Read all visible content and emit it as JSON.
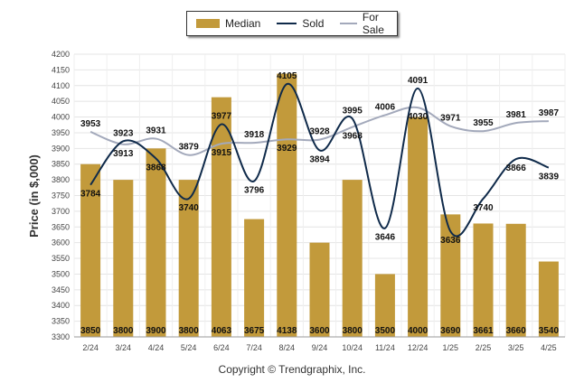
{
  "chart_data": {
    "type": "bar",
    "title": "",
    "xlabel": "",
    "ylabel": "Price (in $,000)",
    "ylim": [
      3300,
      4200
    ],
    "yticks": [
      3300,
      3350,
      3400,
      3450,
      3500,
      3550,
      3600,
      3650,
      3700,
      3750,
      3800,
      3850,
      3900,
      3950,
      4000,
      4050,
      4100,
      4150,
      4200
    ],
    "grid": true,
    "legend_position": "top",
    "categories": [
      "2/24",
      "3/24",
      "4/24",
      "5/24",
      "6/24",
      "7/24",
      "8/24",
      "9/24",
      "10/24",
      "11/24",
      "12/24",
      "1/25",
      "2/25",
      "3/25",
      "4/25"
    ],
    "series": [
      {
        "name": "Median",
        "kind": "bar",
        "color": "#c29a3b",
        "values": [
          3850,
          3800,
          3900,
          3800,
          4063,
          3675,
          4138,
          3600,
          3800,
          3500,
          4000,
          3690,
          3661,
          3660,
          3540
        ]
      },
      {
        "name": "Sold",
        "kind": "line",
        "color": "#0f2a4a",
        "values": [
          3784,
          3923,
          3868,
          3740,
          3977,
          3796,
          4105,
          3894,
          3995,
          3646,
          4091,
          3636,
          3740,
          3866,
          3839
        ]
      },
      {
        "name": "For Sale",
        "kind": "line",
        "color": "#a3a9bb",
        "values": [
          3953,
          3913,
          3931,
          3879,
          3915,
          3918,
          3929,
          3928,
          3968,
          4006,
          4030,
          3971,
          3955,
          3981,
          3987
        ]
      }
    ]
  },
  "legend": {
    "median": "Median",
    "sold": "Sold",
    "for_sale": "For Sale"
  },
  "footer": {
    "copyright": "Copyright © Trendgraphix, Inc."
  }
}
